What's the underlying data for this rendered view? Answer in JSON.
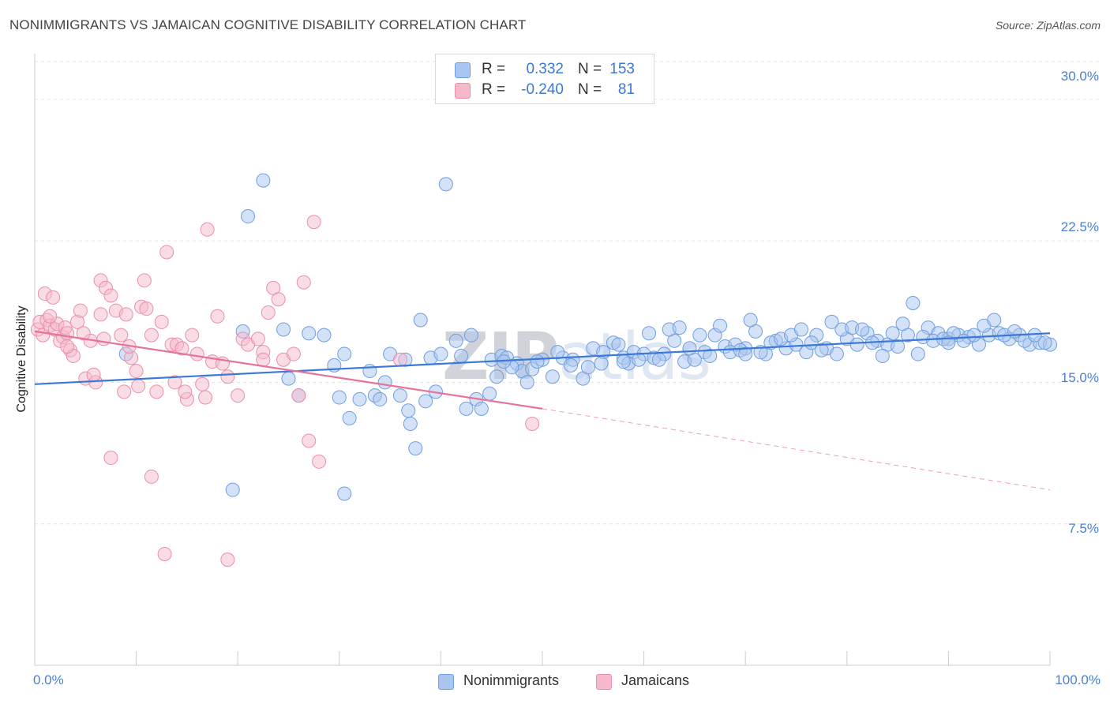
{
  "title": "NONIMMIGRANTS VS JAMAICAN COGNITIVE DISABILITY CORRELATION CHART",
  "source": "Source: ZipAtlas.com",
  "watermark": {
    "bold": "ZIP",
    "light": "atlas"
  },
  "colors": {
    "blue": "#3b78d8",
    "blue_fill": "#a9c6f0",
    "pink": "#e8739a",
    "pink_fill": "#f6b9cb",
    "grid": "#e3e3e3",
    "tick_label": "#4a7fd1"
  },
  "legend_top": [
    {
      "r_label": "R =",
      "r_value": "0.332",
      "n_label": "N =",
      "n_value": "153",
      "color": "#a9c6f0"
    },
    {
      "r_label": "R =",
      "r_value": "-0.240",
      "n_label": "N =",
      "n_value": "81",
      "color": "#f6b9cb"
    }
  ],
  "legend_bottom": [
    {
      "label": "Nonimmigrants",
      "color": "#a9c6f0"
    },
    {
      "label": "Jamaicans",
      "color": "#f6b9cb"
    }
  ],
  "chart_data": {
    "type": "scatter",
    "title": "NONIMMIGRANTS VS JAMAICAN COGNITIVE DISABILITY CORRELATION CHART",
    "xlabel": "",
    "ylabel": "Cognitive Disability",
    "xlim": [
      0,
      100
    ],
    "ylim": [
      0,
      32
    ],
    "x_tick_labels": [
      "0.0%",
      "100.0%"
    ],
    "y_ticks": [
      7.5,
      15.0,
      22.5,
      30.0
    ],
    "y_tick_labels": [
      "7.5%",
      "15.0%",
      "22.5%",
      "30.0%"
    ],
    "grid": true,
    "legend_position": "top-center",
    "series": [
      {
        "name": "Nonimmigrants",
        "color": "#3b78d8",
        "trend": {
          "x": [
            0,
            100
          ],
          "y": [
            14.9,
            17.6
          ],
          "style": "solid"
        },
        "points": [
          [
            9,
            16.5
          ],
          [
            22.5,
            25.7
          ],
          [
            21,
            23.8
          ],
          [
            40.5,
            25.5
          ],
          [
            20.5,
            17.7
          ],
          [
            24.5,
            17.8
          ],
          [
            27,
            17.6
          ],
          [
            28.5,
            17.5
          ],
          [
            19.5,
            9.3
          ],
          [
            30.5,
            16.5
          ],
          [
            35,
            16.5
          ],
          [
            36.5,
            16.2
          ],
          [
            38,
            18.3
          ],
          [
            39,
            16.3
          ],
          [
            40,
            16.5
          ],
          [
            41.5,
            17.2
          ],
          [
            42,
            16.4
          ],
          [
            43,
            17.5
          ],
          [
            45,
            16.2
          ],
          [
            46,
            16.4
          ],
          [
            46.5,
            16.3
          ],
          [
            47.5,
            16.0
          ],
          [
            48,
            15.6
          ],
          [
            49,
            15.7
          ],
          [
            50,
            16.2
          ],
          [
            51,
            15.3
          ],
          [
            52,
            16.3
          ],
          [
            53,
            16.2
          ],
          [
            54,
            15.2
          ],
          [
            55,
            16.8
          ],
          [
            56,
            16.6
          ],
          [
            57,
            17.1
          ],
          [
            58,
            16.3
          ],
          [
            59,
            16.6
          ],
          [
            60,
            16.5
          ],
          [
            61,
            16.3
          ],
          [
            62,
            16.5
          ],
          [
            63,
            17.2
          ],
          [
            64,
            16.1
          ],
          [
            65,
            16.2
          ],
          [
            66,
            16.6
          ],
          [
            67,
            17.5
          ],
          [
            68,
            16.9
          ],
          [
            69,
            17.0
          ],
          [
            70,
            16.8
          ],
          [
            71,
            17.7
          ],
          [
            72,
            16.5
          ],
          [
            73,
            17.2
          ],
          [
            74,
            16.8
          ],
          [
            75,
            17.0
          ],
          [
            76,
            16.6
          ],
          [
            77,
            17.5
          ],
          [
            78,
            16.8
          ],
          [
            79,
            16.5
          ],
          [
            80,
            17.3
          ],
          [
            81,
            17.0
          ],
          [
            82,
            17.6
          ],
          [
            83,
            17.2
          ],
          [
            84,
            17.0
          ],
          [
            85,
            16.9
          ],
          [
            86,
            17.5
          ],
          [
            87,
            16.5
          ],
          [
            88,
            17.9
          ],
          [
            89,
            17.6
          ],
          [
            90,
            17.3
          ],
          [
            91,
            17.5
          ],
          [
            92,
            17.4
          ],
          [
            93,
            17.0
          ],
          [
            94,
            17.5
          ],
          [
            95,
            17.6
          ],
          [
            96,
            17.3
          ],
          [
            97,
            17.5
          ],
          [
            98,
            17.0
          ],
          [
            99,
            17.1
          ],
          [
            100,
            17.0
          ],
          [
            33,
            15.6
          ],
          [
            30,
            14.2
          ],
          [
            29.5,
            15.9
          ],
          [
            26,
            14.3
          ],
          [
            25,
            15.2
          ],
          [
            31,
            13.1
          ],
          [
            32,
            14.1
          ],
          [
            33.5,
            14.3
          ],
          [
            34,
            14.1
          ],
          [
            36,
            14.3
          ],
          [
            37,
            12.8
          ],
          [
            38.5,
            14.0
          ],
          [
            39.5,
            14.5
          ],
          [
            42.5,
            13.6
          ],
          [
            43.5,
            14.1
          ],
          [
            44,
            13.6
          ],
          [
            45.5,
            15.3
          ],
          [
            47,
            15.8
          ],
          [
            48.5,
            15.0
          ],
          [
            37.5,
            11.5
          ],
          [
            30.5,
            9.1
          ],
          [
            34.5,
            15.0
          ],
          [
            36.8,
            13.5
          ],
          [
            44.8,
            14.4
          ],
          [
            46.2,
            16.1
          ],
          [
            49.5,
            16.1
          ],
          [
            51.5,
            16.6
          ],
          [
            52.8,
            15.9
          ],
          [
            54.5,
            15.8
          ],
          [
            55.8,
            16.0
          ],
          [
            57.5,
            17.0
          ],
          [
            58.5,
            16.0
          ],
          [
            59.5,
            16.2
          ],
          [
            60.5,
            17.6
          ],
          [
            61.5,
            16.2
          ],
          [
            62.5,
            17.8
          ],
          [
            63.5,
            17.9
          ],
          [
            64.5,
            16.8
          ],
          [
            65.5,
            17.5
          ],
          [
            66.5,
            16.4
          ],
          [
            67.5,
            18.0
          ],
          [
            68.5,
            16.6
          ],
          [
            69.5,
            16.7
          ],
          [
            70.5,
            18.3
          ],
          [
            71.5,
            16.6
          ],
          [
            72.5,
            17.1
          ],
          [
            73.5,
            17.3
          ],
          [
            74.5,
            17.5
          ],
          [
            75.5,
            17.8
          ],
          [
            76.5,
            17.1
          ],
          [
            77.5,
            16.7
          ],
          [
            78.5,
            18.2
          ],
          [
            79.5,
            17.8
          ],
          [
            80.5,
            17.9
          ],
          [
            81.5,
            17.8
          ],
          [
            82.5,
            17.1
          ],
          [
            83.5,
            16.4
          ],
          [
            84.5,
            17.6
          ],
          [
            85.5,
            18.1
          ],
          [
            86.5,
            19.2
          ],
          [
            87.5,
            17.4
          ],
          [
            88.5,
            17.2
          ],
          [
            89.5,
            17.3
          ],
          [
            90.5,
            17.6
          ],
          [
            91.5,
            17.2
          ],
          [
            92.5,
            17.5
          ],
          [
            93.5,
            18.0
          ],
          [
            94.5,
            18.3
          ],
          [
            95.5,
            17.5
          ],
          [
            96.5,
            17.7
          ],
          [
            97.5,
            17.2
          ],
          [
            98.5,
            17.5
          ],
          [
            99.5,
            17.1
          ],
          [
            58,
            16.1
          ],
          [
            70,
            16.5
          ],
          [
            90,
            17.1
          ]
        ]
      },
      {
        "name": "Jamaicans",
        "color": "#e8739a",
        "trend": {
          "x": [
            0,
            50
          ],
          "y": [
            17.7,
            13.6
          ],
          "style": "solid",
          "extended_to": [
            100,
            9.3
          ]
        },
        "points": [
          [
            0.3,
            17.8
          ],
          [
            0.5,
            18.2
          ],
          [
            0.8,
            17.5
          ],
          [
            1.0,
            19.7
          ],
          [
            1.2,
            18.3
          ],
          [
            1.5,
            18.0
          ],
          [
            1.8,
            19.5
          ],
          [
            2.0,
            17.8
          ],
          [
            2.2,
            18.1
          ],
          [
            2.5,
            17.2
          ],
          [
            2.8,
            17.4
          ],
          [
            3.0,
            17.9
          ],
          [
            3.2,
            17.6
          ],
          [
            3.5,
            16.7
          ],
          [
            3.8,
            16.4
          ],
          [
            4.2,
            18.2
          ],
          [
            4.5,
            18.8
          ],
          [
            5.0,
            15.2
          ],
          [
            5.5,
            17.2
          ],
          [
            6.0,
            15.0
          ],
          [
            6.5,
            18.6
          ],
          [
            6.5,
            20.4
          ],
          [
            7.0,
            20.0
          ],
          [
            7.5,
            19.6
          ],
          [
            8.0,
            18.8
          ],
          [
            8.5,
            17.5
          ],
          [
            9.0,
            18.6
          ],
          [
            9.5,
            16.3
          ],
          [
            10.0,
            15.6
          ],
          [
            10.5,
            19.0
          ],
          [
            10.8,
            20.4
          ],
          [
            11.0,
            18.9
          ],
          [
            11.5,
            17.5
          ],
          [
            12.0,
            14.5
          ],
          [
            12.5,
            18.2
          ],
          [
            13.0,
            21.9
          ],
          [
            13.5,
            17.0
          ],
          [
            14.0,
            17.0
          ],
          [
            14.5,
            16.8
          ],
          [
            15.0,
            14.1
          ],
          [
            15.5,
            17.5
          ],
          [
            16.0,
            16.5
          ],
          [
            16.5,
            14.9
          ],
          [
            17.0,
            23.1
          ],
          [
            17.5,
            16.1
          ],
          [
            18.0,
            18.5
          ],
          [
            19.0,
            15.3
          ],
          [
            20.0,
            14.3
          ],
          [
            20.5,
            17.3
          ],
          [
            21.0,
            17.0
          ],
          [
            22.0,
            17.3
          ],
          [
            22.5,
            16.6
          ],
          [
            23.0,
            18.7
          ],
          [
            23.5,
            20.0
          ],
          [
            24.0,
            19.4
          ],
          [
            24.5,
            16.2
          ],
          [
            25.5,
            16.5
          ],
          [
            26.0,
            14.3
          ],
          [
            26.5,
            20.3
          ],
          [
            27.0,
            11.9
          ],
          [
            27.5,
            23.5
          ],
          [
            28.0,
            10.8
          ],
          [
            7.5,
            11.0
          ],
          [
            11.5,
            10.0
          ],
          [
            12.8,
            5.9
          ],
          [
            19.0,
            5.6
          ],
          [
            5.8,
            15.4
          ],
          [
            8.8,
            14.5
          ],
          [
            10.2,
            14.8
          ],
          [
            13.8,
            15.0
          ],
          [
            16.8,
            14.2
          ],
          [
            18.5,
            16.0
          ],
          [
            3.2,
            16.9
          ],
          [
            4.8,
            17.6
          ],
          [
            6.8,
            17.3
          ],
          [
            9.3,
            16.9
          ],
          [
            22.5,
            16.2
          ],
          [
            49.0,
            12.8
          ],
          [
            36.0,
            16.2
          ],
          [
            14.8,
            14.5
          ],
          [
            1.5,
            18.5
          ]
        ]
      }
    ]
  }
}
